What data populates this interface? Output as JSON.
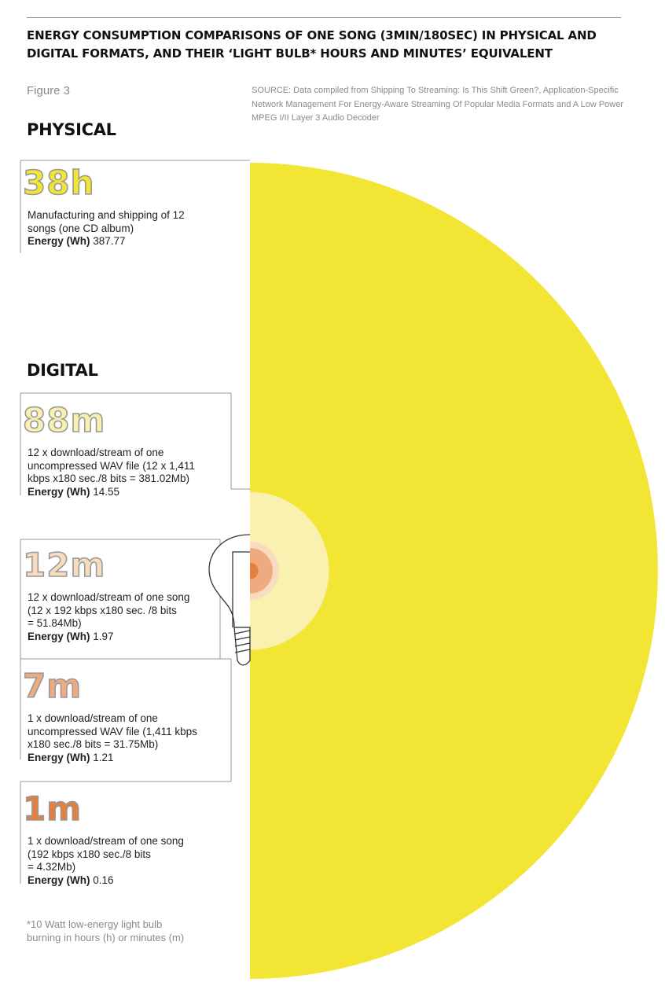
{
  "header": {
    "title": "ENERGY CONSUMPTION COMPARISONS OF ONE SONG (3MIN/180SEC) IN PHYSICAL AND DIGITAL FORMATS, AND THEIR ‘LIGHT BULB* HOURS AND MINUTES’ EQUIVALENT",
    "figure_label": "Figure 3",
    "source": "SOURCE: Data compiled from Shipping To Streaming: Is This Shift Green?, Application-Specific Network Management For Energy-Aware Streaming Of Popular Media Formats and A Low Power MPEG I/II Layer 3 Audio Decoder"
  },
  "sections": {
    "physical": "PHYSICAL",
    "digital": "DIGITAL"
  },
  "energy_label": "Energy (Wh)",
  "footnote": "*10 Watt low-energy light bulb\nburning in hours (h) or minutes (m)",
  "chart_data": {
    "type": "semicircle-area",
    "series_unit": "Energy (Wh)",
    "items": [
      {
        "group": "PHYSICAL",
        "big": "38h",
        "energy": 387.77,
        "energy_text": "387.77",
        "description": "Manufacturing and shipping of 12\nsongs (one CD album)",
        "color": "#f2e533"
      },
      {
        "group": "DIGITAL",
        "big": "88m",
        "energy": 14.55,
        "energy_text": "14.55",
        "description": "12 x download/stream of one\nuncompressed WAV file (12 x 1,411\nkbps x180 sec./8 bits = 381.02Mb)",
        "color": "#faf1b0"
      },
      {
        "group": "DIGITAL",
        "big": "12m",
        "energy": 1.97,
        "energy_text": "1.97",
        "description": "12 x download/stream of one song\n(12 x 192 kbps x180 sec. /8 bits\n= 51.84Mb)",
        "color": "#f8dcc0"
      },
      {
        "group": "DIGITAL",
        "big": "7m",
        "energy": 1.21,
        "energy_text": "1.21",
        "description": "1 x download/stream of one\nuncompressed WAV file (1,411 kbps\nx180 sec./8 bits = 31.75Mb)",
        "color": "#efab7f"
      },
      {
        "group": "DIGITAL",
        "big": "1m",
        "energy": 0.16,
        "energy_text": "0.16",
        "description": "1 x download/stream of one song\n(192 kbps x180 sec./8 bits\n= 4.32Mb)",
        "color": "#e57f3c"
      }
    ]
  }
}
